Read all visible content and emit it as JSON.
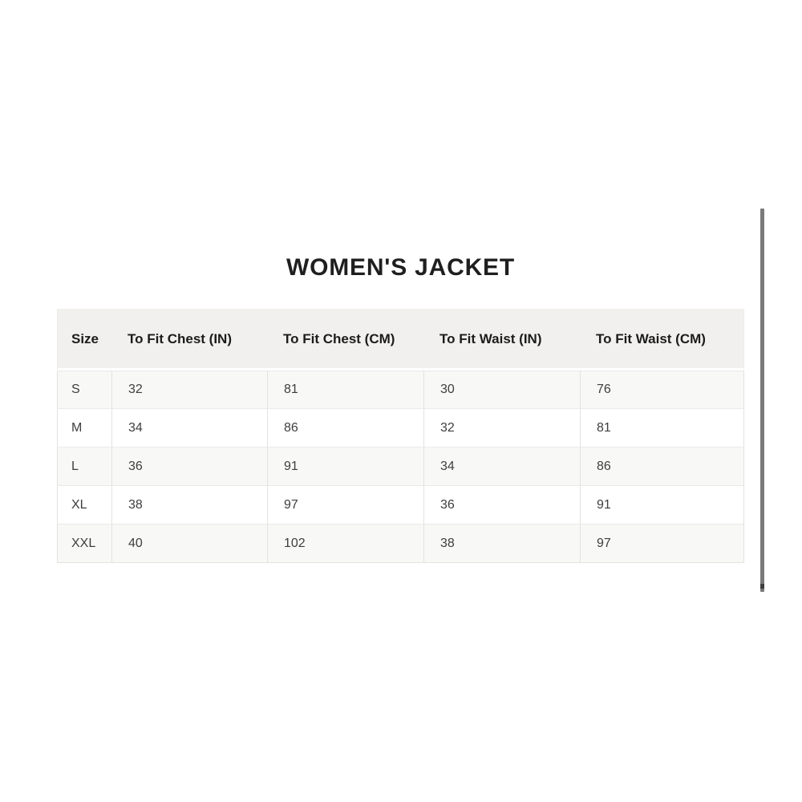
{
  "chart_data": {
    "type": "table",
    "title": "WOMEN'S JACKET",
    "columns": [
      "Size",
      "To Fit Chest (IN)",
      "To Fit Chest (CM)",
      "To Fit Waist (IN)",
      "To Fit Waist (CM)"
    ],
    "rows": [
      [
        "S",
        "32",
        "81",
        "30",
        "76"
      ],
      [
        "M",
        "34",
        "86",
        "32",
        "81"
      ],
      [
        "L",
        "36",
        "91",
        "34",
        "86"
      ],
      [
        "XL",
        "38",
        "97",
        "36",
        "91"
      ],
      [
        "XXL",
        "40",
        "102",
        "38",
        "97"
      ]
    ],
    "layout": {
      "legend": "none",
      "grid": "cell-borders",
      "striped_rows": true
    }
  },
  "colors": {
    "page_bg": "#ffffff",
    "header_bg": "#f1f0ee",
    "stripe_row_bg": "#f8f8f7",
    "plain_row_bg": "#ffffff",
    "cell_border": "#e2e2e0",
    "header_text": "#1c1c1c",
    "cell_text": "#3e3e3e",
    "title_text": "#1f1f1f",
    "scrollbar": "#7a7a7a"
  }
}
